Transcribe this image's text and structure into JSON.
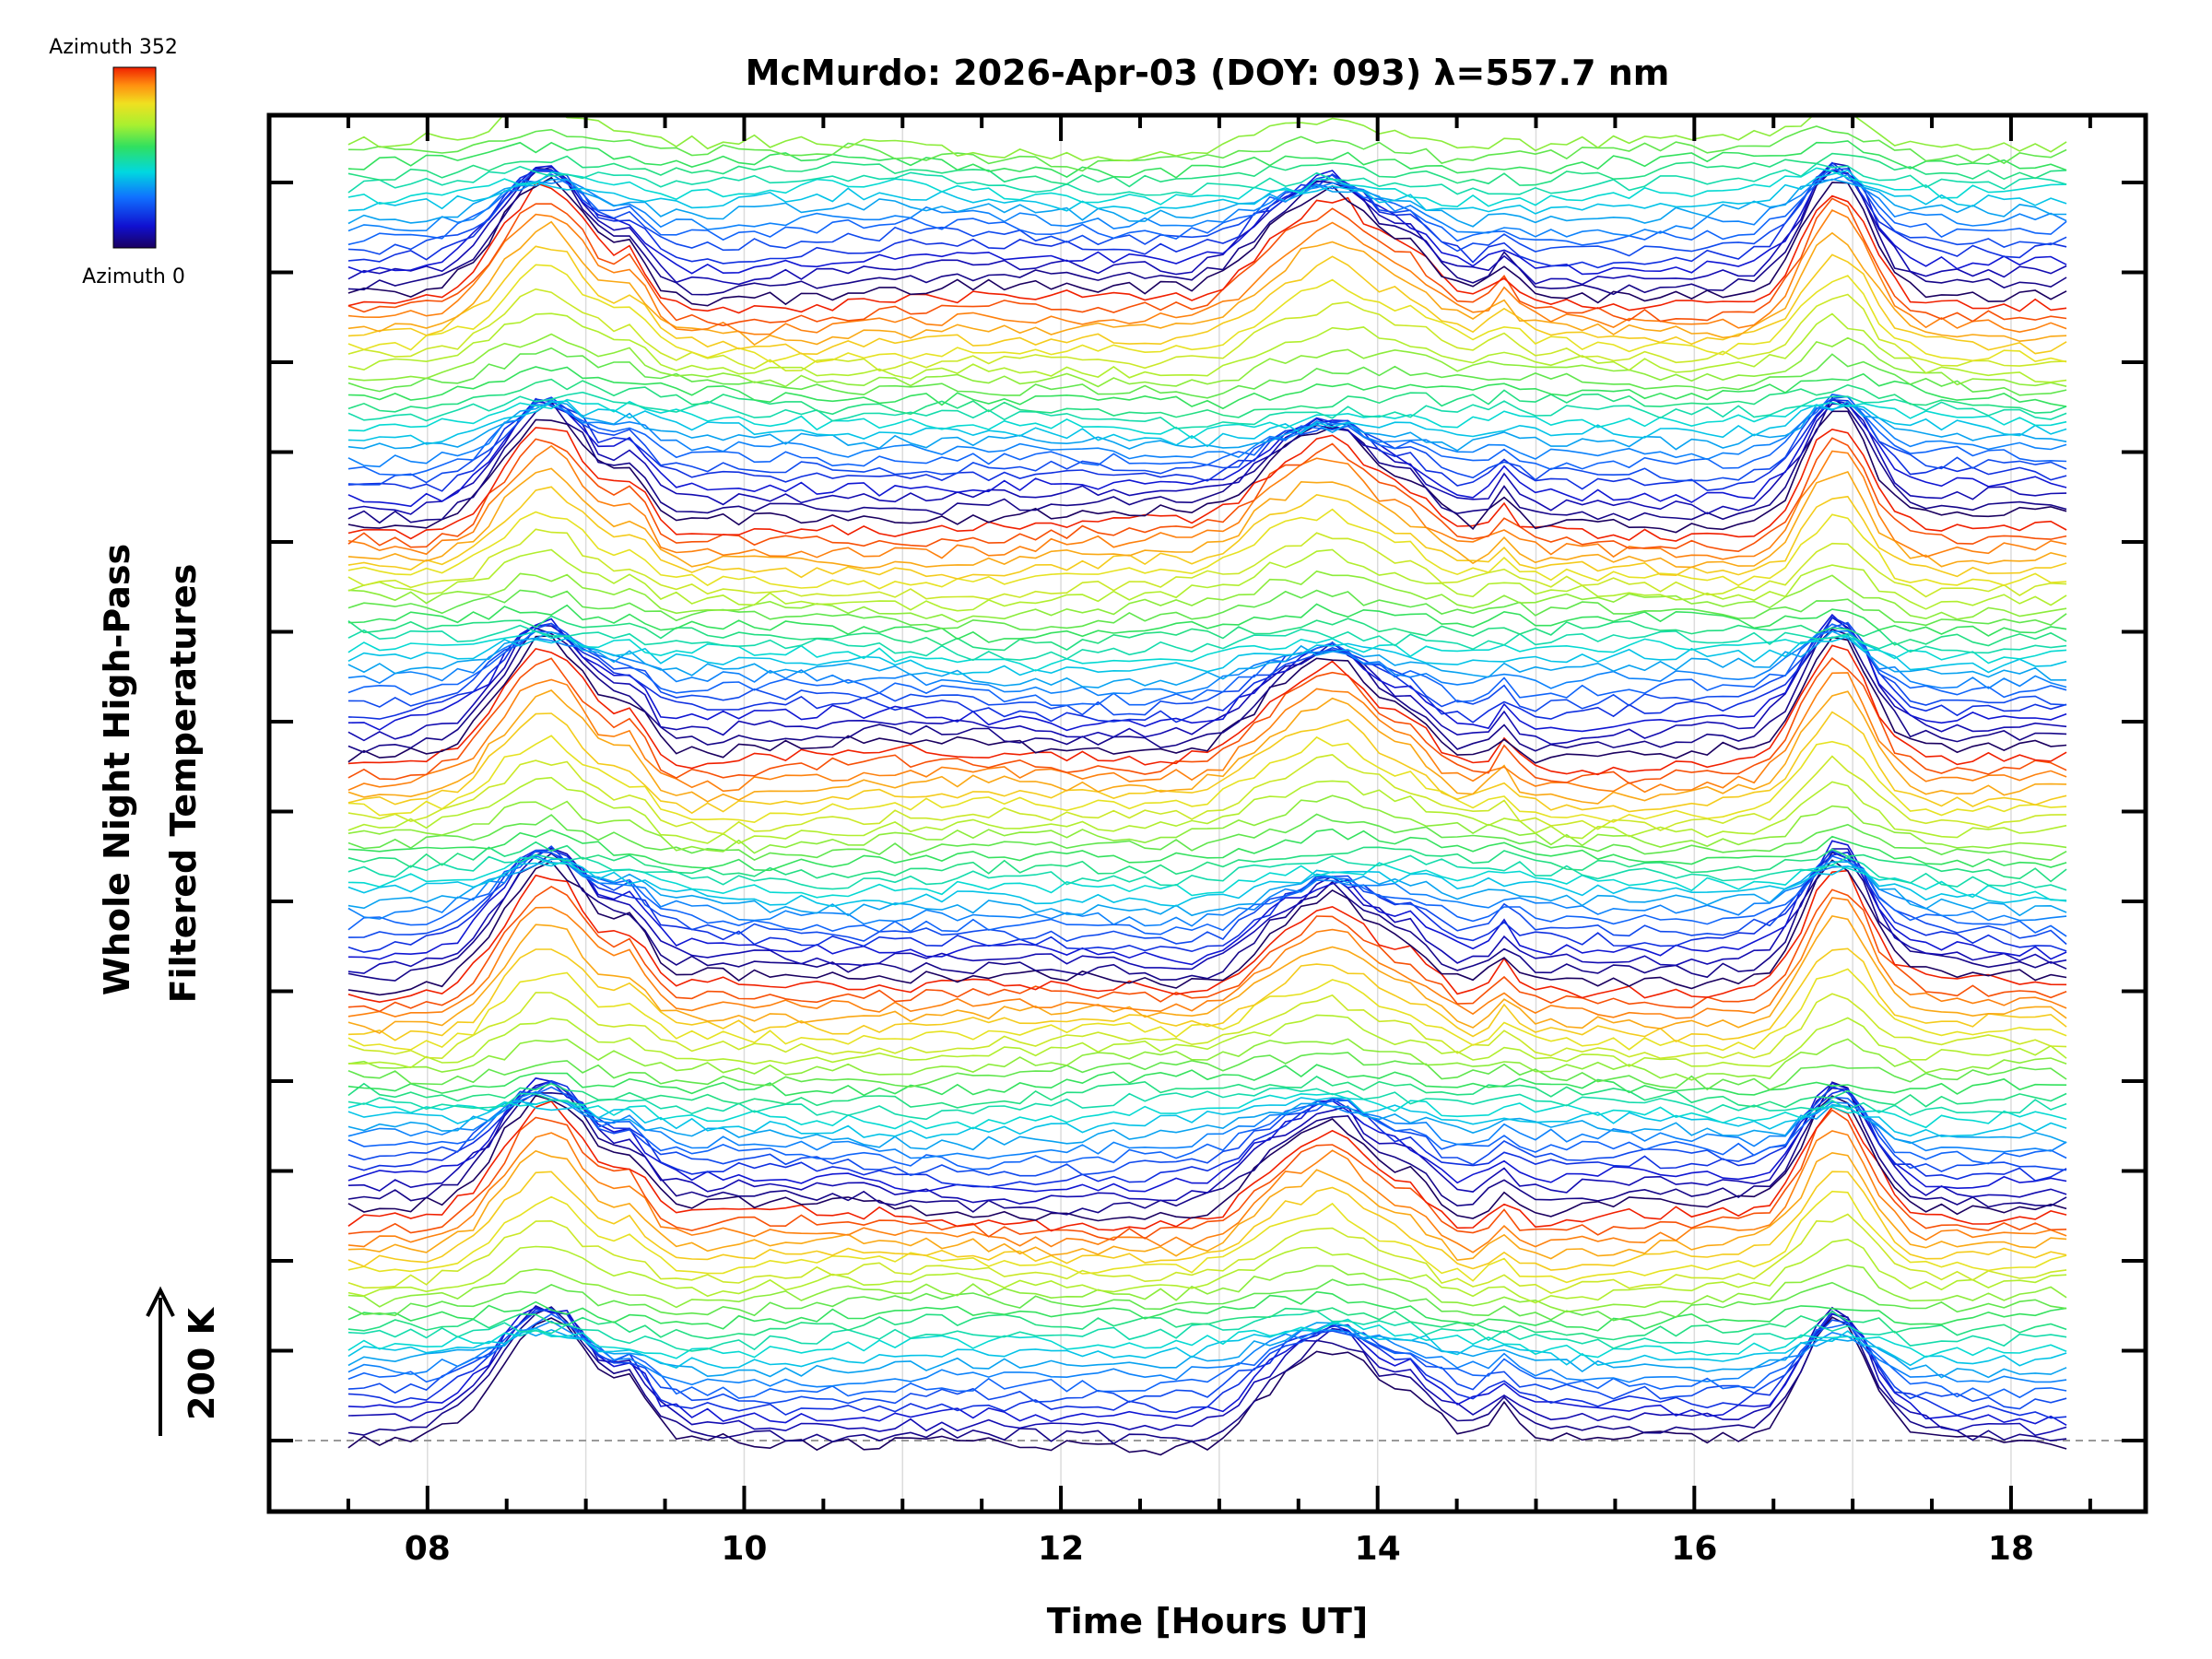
{
  "chart_data": {
    "type": "line",
    "title": "McMurdo: 2026-Apr-03 (DOY: 093) λ=557.7 nm",
    "xlabel": "Time [Hours UT]",
    "ylabel_line1": "Whole Night High-Pass",
    "ylabel_line2": "Filtered Temperatures",
    "scale_label": "200 K",
    "xlim": [
      7.0,
      18.85
    ],
    "x_ticks": [
      8,
      10,
      12,
      14,
      16,
      18
    ],
    "x_tick_labels": [
      "08",
      "10",
      "12",
      "14",
      "16",
      "18"
    ],
    "x_range_data": [
      7.5,
      18.35
    ],
    "colorbar": {
      "top_label": "Azimuth 352",
      "bottom_label": "Azimuth 0"
    },
    "n_traces": 136,
    "traces_per_cycle": 24,
    "n_cycles": 6,
    "events": [
      {
        "center": 8.75,
        "width": 0.28,
        "peak_K": 190
      },
      {
        "center": 9.3,
        "width": 0.1,
        "peak_K": 60
      },
      {
        "center": 13.4,
        "width": 0.22,
        "peak_K": 90
      },
      {
        "center": 13.78,
        "width": 0.2,
        "peak_K": 130
      },
      {
        "center": 14.2,
        "width": 0.15,
        "peak_K": 60
      },
      {
        "center": 14.8,
        "width": 0.07,
        "peak_K": 45
      },
      {
        "center": 16.9,
        "width": 0.2,
        "peak_K": 190
      }
    ]
  }
}
